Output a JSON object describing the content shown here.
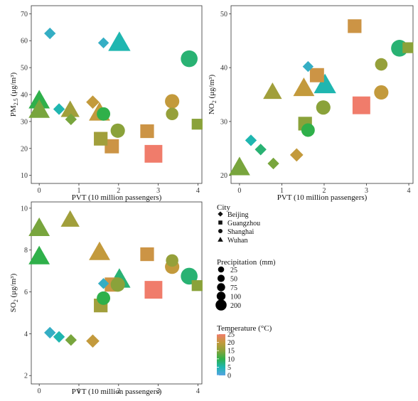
{
  "chart_data": [
    {
      "type": "scatter",
      "panel": "pm25",
      "xlabel": "PVT (10 million passengers)",
      "ylabel_main": "PM",
      "ylabel_sub": "2.5",
      "ylabel_unit": " (μg/m³)",
      "xlim": [
        -0.2,
        4.1
      ],
      "ylim": [
        7,
        73
      ],
      "xticks": [
        0,
        1,
        2,
        3,
        4
      ],
      "yticks": [
        10,
        20,
        30,
        40,
        50,
        60,
        70
      ],
      "points": [
        {
          "city": "Beijing",
          "x": 0.27,
          "y": 62.7,
          "p": 25,
          "t": 3
        },
        {
          "city": "Beijing",
          "x": 0.5,
          "y": 34.6,
          "p": 25,
          "t": 5
        },
        {
          "city": "Beijing",
          "x": 0.8,
          "y": 30.8,
          "p": 25,
          "t": 14
        },
        {
          "city": "Beijing",
          "x": 1.35,
          "y": 37.2,
          "p": 40,
          "t": 20
        },
        {
          "city": "Beijing",
          "x": 1.62,
          "y": 59.2,
          "p": 20,
          "t": 3
        },
        {
          "city": "Guangzhou",
          "x": 1.55,
          "y": 23.6,
          "p": 100,
          "t": 17
        },
        {
          "city": "Guangzhou",
          "x": 1.83,
          "y": 20.8,
          "p": 110,
          "t": 21
        },
        {
          "city": "Guangzhou",
          "x": 2.72,
          "y": 26.4,
          "p": 100,
          "t": 21
        },
        {
          "city": "Guangzhou",
          "x": 2.88,
          "y": 18.0,
          "p": 200,
          "t": 25
        },
        {
          "city": "Guangzhou",
          "x": 3.98,
          "y": 29.0,
          "p": 50,
          "t": 15
        },
        {
          "city": "Shanghai",
          "x": 1.62,
          "y": 32.8,
          "p": 75,
          "t": 10
        },
        {
          "city": "Shanghai",
          "x": 1.98,
          "y": 26.6,
          "p": 90,
          "t": 15
        },
        {
          "city": "Shanghai",
          "x": 3.35,
          "y": 37.5,
          "p": 90,
          "t": 20
        },
        {
          "city": "Shanghai",
          "x": 3.35,
          "y": 32.8,
          "p": 60,
          "t": 16
        },
        {
          "city": "Shanghai",
          "x": 3.78,
          "y": 53.3,
          "p": 140,
          "t": 8
        },
        {
          "city": "Wuhan",
          "x": 0.0,
          "y": 37.8,
          "p": 140,
          "t": 10
        },
        {
          "city": "Wuhan",
          "x": 0.0,
          "y": 34.3,
          "p": 140,
          "t": 14
        },
        {
          "city": "Wuhan",
          "x": 0.78,
          "y": 34.3,
          "p": 100,
          "t": 17
        },
        {
          "city": "Wuhan",
          "x": 1.52,
          "y": 33.3,
          "p": 140,
          "t": 20
        },
        {
          "city": "Wuhan",
          "x": 2.02,
          "y": 59.3,
          "p": 160,
          "t": 5
        }
      ]
    },
    {
      "type": "scatter",
      "panel": "no2",
      "xlabel": "PVT (10 million passengers)",
      "ylabel_main": "NO",
      "ylabel_sub": "2",
      "ylabel_unit": " (μg/m³)",
      "xlim": [
        -0.2,
        4.1
      ],
      "ylim": [
        18.5,
        51.5
      ],
      "xticks": [
        0,
        1,
        2,
        3,
        4
      ],
      "yticks": [
        20,
        30,
        40,
        50
      ],
      "points": [
        {
          "city": "Beijing",
          "x": 0.27,
          "y": 26.5,
          "p": 25,
          "t": 5
        },
        {
          "city": "Beijing",
          "x": 0.5,
          "y": 24.8,
          "p": 25,
          "t": 8
        },
        {
          "city": "Beijing",
          "x": 0.8,
          "y": 22.2,
          "p": 25,
          "t": 14
        },
        {
          "city": "Beijing",
          "x": 1.35,
          "y": 23.8,
          "p": 40,
          "t": 20
        },
        {
          "city": "Beijing",
          "x": 1.62,
          "y": 40.2,
          "p": 20,
          "t": 3
        },
        {
          "city": "Guangzhou",
          "x": 1.55,
          "y": 29.6,
          "p": 100,
          "t": 15
        },
        {
          "city": "Guangzhou",
          "x": 1.83,
          "y": 38.6,
          "p": 110,
          "t": 21
        },
        {
          "city": "Guangzhou",
          "x": 2.72,
          "y": 47.7,
          "p": 100,
          "t": 21
        },
        {
          "city": "Guangzhou",
          "x": 2.88,
          "y": 33.0,
          "p": 200,
          "t": 25
        },
        {
          "city": "Guangzhou",
          "x": 3.98,
          "y": 43.7,
          "p": 50,
          "t": 15
        },
        {
          "city": "Shanghai",
          "x": 1.62,
          "y": 28.4,
          "p": 75,
          "t": 10
        },
        {
          "city": "Shanghai",
          "x": 1.98,
          "y": 32.6,
          "p": 90,
          "t": 15
        },
        {
          "city": "Shanghai",
          "x": 3.35,
          "y": 35.4,
          "p": 90,
          "t": 20
        },
        {
          "city": "Shanghai",
          "x": 3.35,
          "y": 40.6,
          "p": 60,
          "t": 16
        },
        {
          "city": "Shanghai",
          "x": 3.78,
          "y": 43.6,
          "p": 140,
          "t": 8
        },
        {
          "city": "Wuhan",
          "x": 0.0,
          "y": 21.5,
          "p": 140,
          "t": 14
        },
        {
          "city": "Wuhan",
          "x": 0.78,
          "y": 35.5,
          "p": 100,
          "t": 17
        },
        {
          "city": "Wuhan",
          "x": 1.52,
          "y": 36.2,
          "p": 140,
          "t": 20
        },
        {
          "city": "Wuhan",
          "x": 2.02,
          "y": 36.8,
          "p": 160,
          "t": 5
        }
      ]
    },
    {
      "type": "scatter",
      "panel": "so2",
      "xlabel": "PVT (10 million passengers)",
      "ylabel_main": "SO",
      "ylabel_sub": "2",
      "ylabel_unit": " (μg/m³)",
      "xlim": [
        -0.2,
        4.1
      ],
      "ylim": [
        1.6,
        10.3
      ],
      "xticks": [
        0,
        1,
        2,
        3,
        4
      ],
      "yticks": [
        2,
        4,
        6,
        8,
        10
      ],
      "points": [
        {
          "city": "Beijing",
          "x": 0.27,
          "y": 4.05,
          "p": 25,
          "t": 3
        },
        {
          "city": "Beijing",
          "x": 0.5,
          "y": 3.85,
          "p": 25,
          "t": 5
        },
        {
          "city": "Beijing",
          "x": 0.8,
          "y": 3.7,
          "p": 25,
          "t": 14
        },
        {
          "city": "Beijing",
          "x": 1.35,
          "y": 3.65,
          "p": 40,
          "t": 20
        },
        {
          "city": "Beijing",
          "x": 1.62,
          "y": 6.4,
          "p": 20,
          "t": 3
        },
        {
          "city": "Guangzhou",
          "x": 1.55,
          "y": 5.35,
          "p": 100,
          "t": 17
        },
        {
          "city": "Guangzhou",
          "x": 1.83,
          "y": 6.35,
          "p": 110,
          "t": 21
        },
        {
          "city": "Guangzhou",
          "x": 2.72,
          "y": 7.8,
          "p": 100,
          "t": 21
        },
        {
          "city": "Guangzhou",
          "x": 2.88,
          "y": 6.1,
          "p": 200,
          "t": 25
        },
        {
          "city": "Guangzhou",
          "x": 3.98,
          "y": 6.3,
          "p": 50,
          "t": 15
        },
        {
          "city": "Shanghai",
          "x": 1.62,
          "y": 5.7,
          "p": 75,
          "t": 10
        },
        {
          "city": "Shanghai",
          "x": 1.98,
          "y": 6.35,
          "p": 90,
          "t": 15
        },
        {
          "city": "Shanghai",
          "x": 3.35,
          "y": 7.2,
          "p": 90,
          "t": 20
        },
        {
          "city": "Shanghai",
          "x": 3.35,
          "y": 7.5,
          "p": 60,
          "t": 16
        },
        {
          "city": "Shanghai",
          "x": 3.78,
          "y": 6.75,
          "p": 140,
          "t": 8
        },
        {
          "city": "Wuhan",
          "x": 0.0,
          "y": 9.05,
          "p": 140,
          "t": 14
        },
        {
          "city": "Wuhan",
          "x": 0.0,
          "y": 7.7,
          "p": 140,
          "t": 10
        },
        {
          "city": "Wuhan",
          "x": 0.78,
          "y": 9.45,
          "p": 100,
          "t": 17
        },
        {
          "city": "Wuhan",
          "x": 1.52,
          "y": 7.9,
          "p": 140,
          "t": 20
        },
        {
          "city": "Wuhan",
          "x": 2.02,
          "y": 6.6,
          "p": 160,
          "t": 8
        }
      ]
    }
  ],
  "legend": {
    "city": {
      "title": "City",
      "items": [
        {
          "label": "Beijing",
          "shape": "diamond"
        },
        {
          "label": "Guangzhou",
          "shape": "square"
        },
        {
          "label": "Shanghai",
          "shape": "circle"
        },
        {
          "label": "Wuhan",
          "shape": "triangle"
        }
      ]
    },
    "precipitation": {
      "title": "Precipitation",
      "unit": "(mm)",
      "items": [
        {
          "label": "25",
          "value": 25
        },
        {
          "label": "50",
          "value": 50
        },
        {
          "label": "75",
          "value": 75
        },
        {
          "label": "100",
          "value": 100
        },
        {
          "label": "200",
          "value": 200
        }
      ]
    },
    "temperature": {
      "title": "Temperature (°C)",
      "ticks": [
        "25",
        "20",
        "15",
        "10",
        "5",
        "0"
      ],
      "range": [
        0,
        25
      ],
      "gradient": [
        "#56a3e3",
        "#1fb6b0",
        "#2fb04a",
        "#8aa23a",
        "#c39a3c",
        "#f07c6b"
      ]
    }
  }
}
